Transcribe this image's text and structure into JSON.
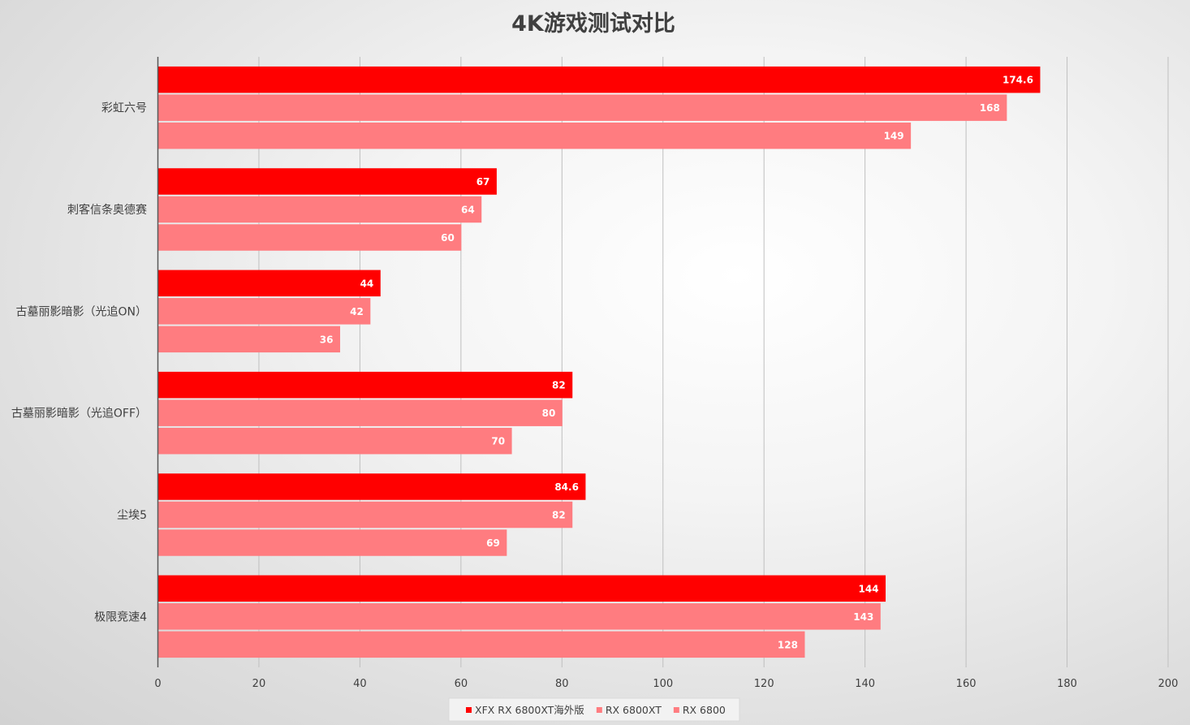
{
  "chart_data": {
    "type": "bar",
    "orientation": "horizontal",
    "title": "4K游戏测试对比",
    "categories": [
      "彩虹六号",
      "刺客信条奥德赛",
      "古墓丽影暗影（光追ON）",
      "古墓丽影暗影（光追OFF）",
      "尘埃5",
      "极限竞速4"
    ],
    "series": [
      {
        "name": "XFX RX 6800XT海外版",
        "color": "#ff0000",
        "values": [
          174.6,
          67,
          44,
          82,
          84.6,
          144
        ]
      },
      {
        "name": "RX 6800XT",
        "color": "#ff7c80",
        "values": [
          168,
          64,
          42,
          80,
          82,
          143
        ]
      },
      {
        "name": "RX 6800",
        "color": "#ff7c80",
        "values": [
          149,
          60,
          36,
          70,
          69,
          128
        ]
      }
    ],
    "xlim": [
      0,
      200
    ],
    "ticks": [
      "0",
      "20",
      "40",
      "60",
      "80",
      "100",
      "120",
      "140",
      "160",
      "180",
      "200"
    ],
    "grid": true,
    "legend_position": "bottom"
  }
}
